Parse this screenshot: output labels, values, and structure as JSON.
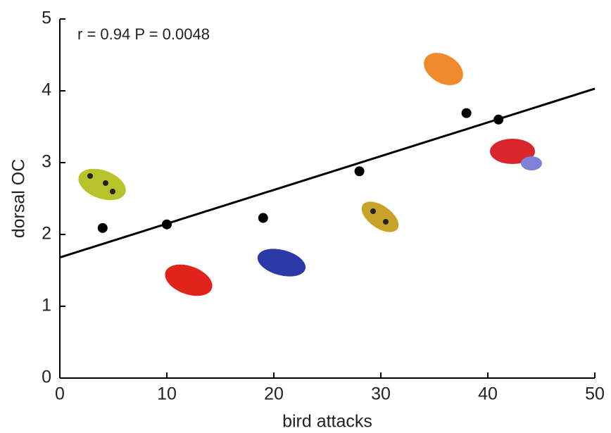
{
  "chart_data": {
    "type": "scatter",
    "annotation": "r = 0.94   P = 0.0048",
    "xlabel": "bird attacks",
    "ylabel": "dorsal OC",
    "x": [
      4,
      10,
      19,
      28,
      38,
      41
    ],
    "values": [
      2.09,
      2.14,
      2.23,
      2.88,
      3.69,
      3.6
    ],
    "color": "#000000",
    "fit_line": {
      "x": [
        0,
        50
      ],
      "y": [
        1.68,
        4.03
      ],
      "color": "#000000"
    },
    "xlim": [
      0,
      50
    ],
    "xticks": [
      0,
      10,
      20,
      30,
      40,
      50
    ],
    "ylim": [
      0,
      5
    ],
    "yticks": [
      0,
      1,
      2,
      3,
      4,
      5
    ],
    "grid": false
  }
}
